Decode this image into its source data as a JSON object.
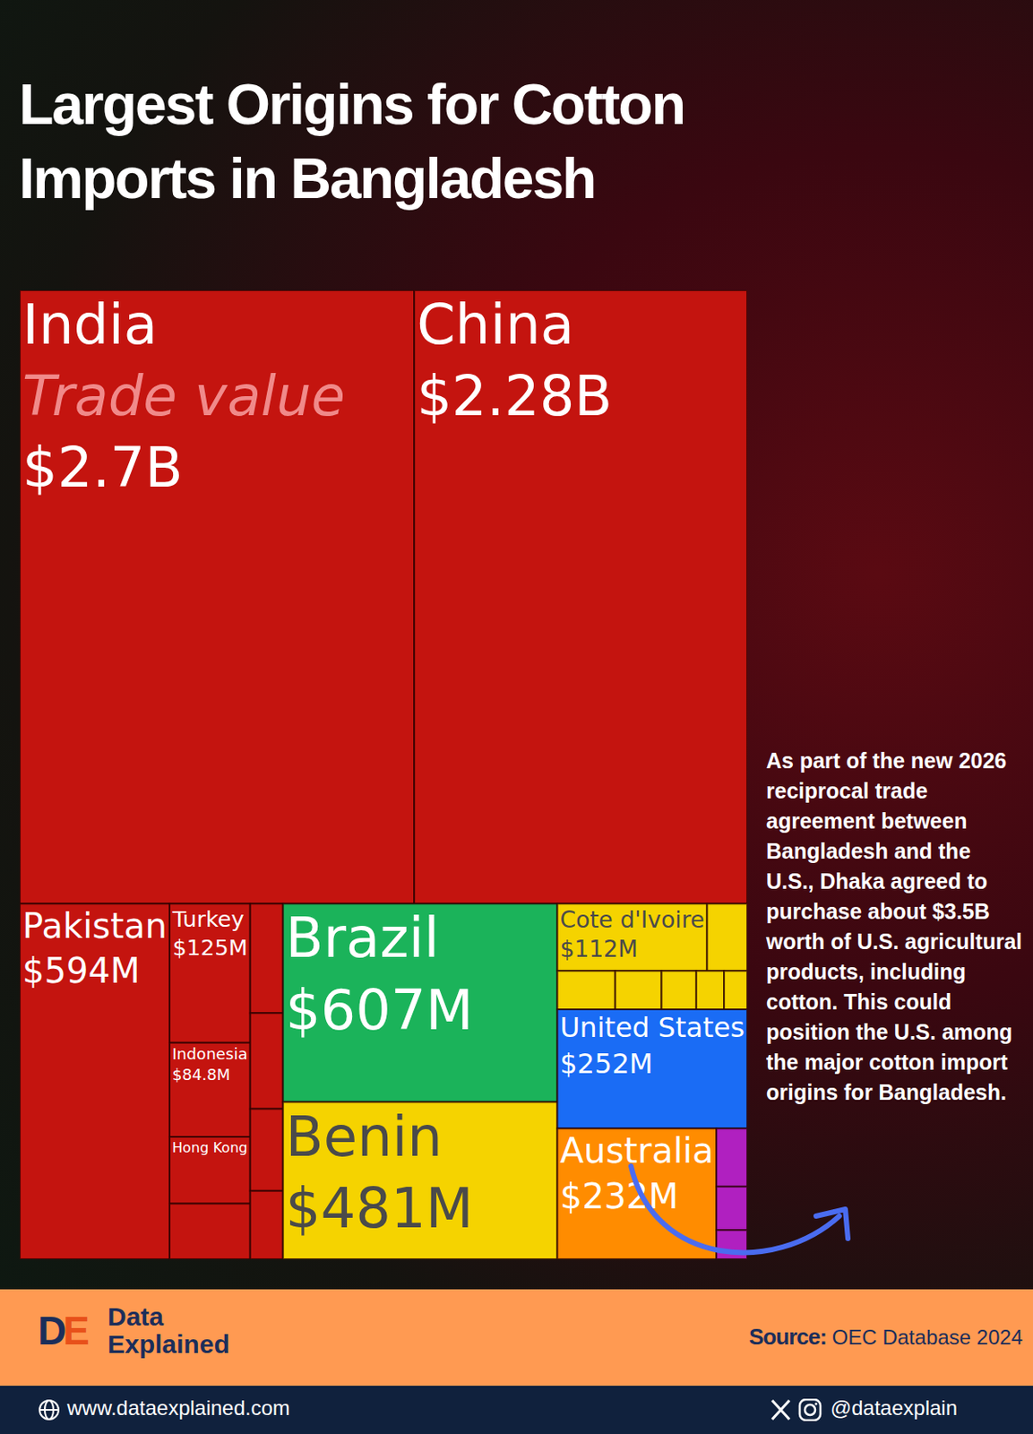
{
  "chart_data": {
    "type": "treemap",
    "title": "Largest Origins for Cotton Imports in Bangladesh",
    "categories": [
      "India",
      "China",
      "Pakistan",
      "Turkey",
      "Indonesia",
      "Hong Kong",
      null,
      null,
      null,
      null,
      null,
      "Brazil",
      "Benin",
      "Cote d'Ivoire",
      null,
      null,
      null,
      null,
      null,
      null,
      "United States",
      "Australia",
      null,
      null,
      null
    ],
    "values": [
      2700000000,
      2280000000,
      594000000,
      125000000,
      84800000,
      60000000,
      50000000,
      40000000,
      35000000,
      30000000,
      25000000,
      607000000,
      481000000,
      112000000,
      30000000,
      25000000,
      20000000,
      15000000,
      12000000,
      10000000,
      252000000,
      232000000,
      20000000,
      15000000,
      10000000
    ],
    "value_labels": [
      "$2.7B",
      "$2.28B",
      "$594M",
      "$125M",
      "$84.8M",
      null,
      null,
      null,
      null,
      null,
      null,
      "$607M",
      "$481M",
      "$112M",
      null,
      null,
      null,
      null,
      null,
      null,
      "$252M",
      "$232M",
      null,
      null,
      null
    ],
    "colors": [
      "#c4140f",
      "#c4140f",
      "#c4140f",
      "#c4140f",
      "#c4140f",
      "#c4140f",
      "#c4140f",
      "#c4140f",
      "#c4140f",
      "#c4140f",
      "#c4140f",
      "#1bb35a",
      "#f5d300",
      "#f5d300",
      "#f5d300",
      "#f5d300",
      "#f5d300",
      "#f5d300",
      "#f5d300",
      "#f5d300",
      "#1a6cf5",
      "#ff8c00",
      "#b020c0",
      "#b020c0",
      "#b020c0"
    ],
    "data_labels": true,
    "annotation": {
      "text": "Trade value",
      "category": "India"
    }
  },
  "note": "As part of the new 2026 reciprocal trade agreement between Bangladesh and the U.S., Dhaka agreed to purchase about $3.5B worth of U.S. agricultural products, including cotton. This could position the U.S. among the major cotton import origins for Bangladesh.",
  "footer": {
    "logo": "DE",
    "brand": [
      "Data",
      "Explained"
    ],
    "source_label": "Source:",
    "source": "OEC Database 2024",
    "website": "www.dataexplained.com",
    "handle": "@dataexplain"
  }
}
